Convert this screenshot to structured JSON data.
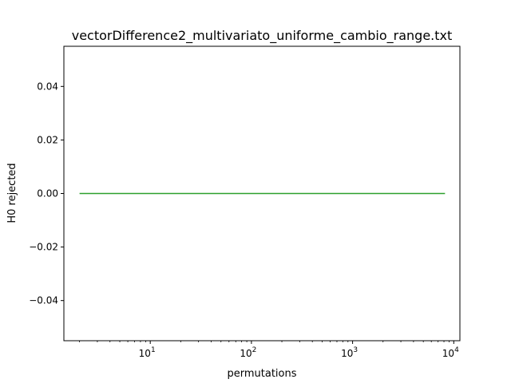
{
  "chart_data": {
    "type": "line",
    "title": "vectorDifference2_multivariato_uniforme_cambio_range.txt",
    "xlabel": "permutations",
    "ylabel": "H0 rejected",
    "x_scale": "log",
    "xlim": [
      1.4,
      11500
    ],
    "ylim": [
      -0.055,
      0.055
    ],
    "x_ticks": [
      {
        "value": 10,
        "base": "10",
        "exp": "1"
      },
      {
        "value": 100,
        "base": "10",
        "exp": "2"
      },
      {
        "value": 1000,
        "base": "10",
        "exp": "3"
      },
      {
        "value": 10000,
        "base": "10",
        "exp": "4"
      }
    ],
    "y_ticks": [
      {
        "value": 0.04,
        "label": "0.04"
      },
      {
        "value": 0.02,
        "label": "0.02"
      },
      {
        "value": 0.0,
        "label": "0.00"
      },
      {
        "value": -0.02,
        "label": "−0.02"
      },
      {
        "value": -0.04,
        "label": "−0.04"
      }
    ],
    "grid": false,
    "series": [
      {
        "color": "#2ca02c",
        "x": [
          2,
          4,
          8,
          16,
          32,
          64,
          128,
          256,
          512,
          1024,
          2048,
          4096,
          8192
        ],
        "y": [
          0,
          0,
          0,
          0,
          0,
          0,
          0,
          0,
          0,
          0,
          0,
          0,
          0
        ]
      }
    ]
  }
}
